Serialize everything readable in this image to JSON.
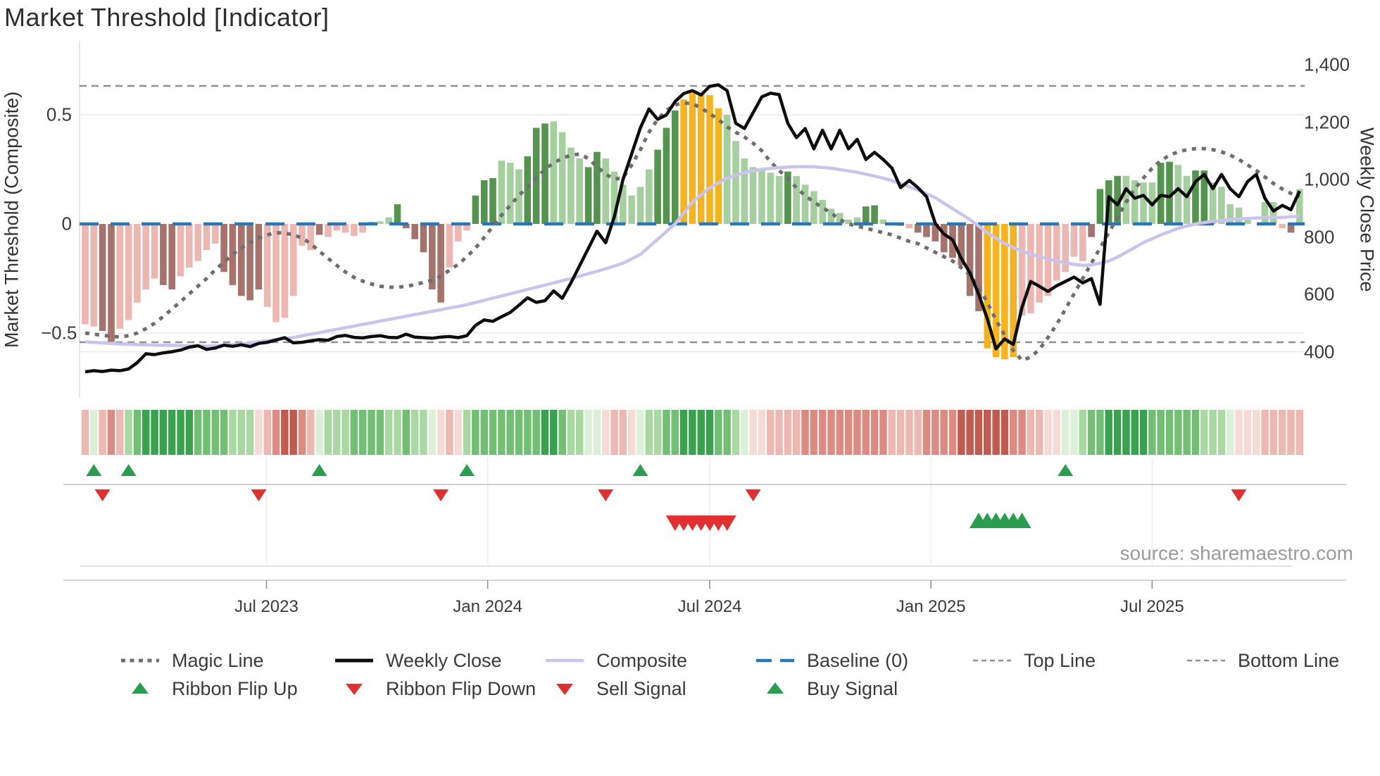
{
  "title": "Market Threshold [Indicator]",
  "source": "source: sharemaestro.com",
  "axes": {
    "left_label": "Market Threshold (Composite)",
    "right_label": "Weekly Close Price",
    "left_ticks": [
      {
        "value": 0.5,
        "label": "0.5"
      },
      {
        "value": 0,
        "label": "0"
      },
      {
        "value": -0.5,
        "label": "−0.5"
      }
    ],
    "right_ticks": [
      {
        "value": 1400,
        "label": "1,400"
      },
      {
        "value": 1200,
        "label": "1,200"
      },
      {
        "value": 1000,
        "label": "1,000"
      },
      {
        "value": 800,
        "label": "800"
      },
      {
        "value": 600,
        "label": "600"
      },
      {
        "value": 400,
        "label": "400"
      }
    ],
    "x_ticks": [
      {
        "label": "Jul 2023",
        "week": 20.9
      },
      {
        "label": "Jan 2024",
        "week": 46.4
      },
      {
        "label": "Jul 2024",
        "week": 72.0
      },
      {
        "label": "Jan 2025",
        "week": 97.5
      },
      {
        "label": "Jul 2025",
        "week": 123.0
      }
    ]
  },
  "legend": {
    "row1": [
      {
        "label": "Magic Line",
        "marker": "dotted-gray"
      },
      {
        "label": "Weekly Close",
        "marker": "solid-black"
      },
      {
        "label": "Composite",
        "marker": "solid-lavender"
      },
      {
        "label": "Baseline (0)",
        "marker": "dashed-blue"
      },
      {
        "label": "Top Line",
        "marker": "dashed-gray"
      },
      {
        "label": "Bottom Line",
        "marker": "dashed-gray"
      }
    ],
    "row2": [
      {
        "label": "Ribbon Flip Up",
        "marker": "triangle-up"
      },
      {
        "label": "Ribbon Flip Down",
        "marker": "triangle-down"
      },
      {
        "label": "Sell Signal",
        "marker": "triangle-down"
      },
      {
        "label": "Buy Signal",
        "marker": "triangle-up"
      }
    ]
  },
  "colors": {
    "bar_pink_light": "#ECB6B1",
    "bar_red_dark": "#A5726C",
    "bar_green_light": "#A6CFA0",
    "bar_green_dark": "#55944F",
    "bar_yellow": "#F5B41F",
    "weekly_close_line": "#0d0d0d",
    "composite_line": "#C9C3EE",
    "magic_line": "#6E6E6E",
    "baseline_blue": "#2878B8",
    "top_bottom_line_gray": "#8F8F8F",
    "signal_green": "#2A9D4E",
    "signal_red": "#E03030",
    "ribbon_greens": [
      "#DCEFD8",
      "#A9D8A3",
      "#72BE73",
      "#3AA14F"
    ],
    "ribbon_reds": [
      "#F6DAD6",
      "#EEB8B2",
      "#DB8B81",
      "#C05B50"
    ],
    "gridline": "#E9E9F0",
    "axis_line": "#CFCFCF"
  },
  "chart_data": {
    "type": "combo bar+line weekly indicator chart",
    "weeks": 141,
    "baseline": 0,
    "top_line_value": 0.63,
    "bottom_line_value": -0.54,
    "left_axis_ticks": [
      0.5,
      0,
      -0.5
    ],
    "right_axis_range": [
      400,
      1400
    ],
    "threshold_bars": [
      -0.46,
      -0.47,
      -0.49,
      -0.54,
      -0.48,
      -0.44,
      -0.36,
      -0.3,
      -0.25,
      -0.28,
      -0.3,
      -0.24,
      -0.2,
      -0.17,
      -0.12,
      -0.09,
      -0.22,
      -0.28,
      -0.33,
      -0.35,
      -0.3,
      -0.38,
      -0.45,
      -0.43,
      -0.33,
      -0.1,
      -0.12,
      -0.05,
      -0.06,
      -0.03,
      -0.04,
      -0.055,
      -0.04,
      0.01,
      0.012,
      0.03,
      0.09,
      -0.02,
      -0.07,
      -0.13,
      -0.3,
      -0.36,
      -0.2,
      -0.08,
      -0.03,
      0.13,
      0.2,
      0.21,
      0.29,
      0.28,
      0.25,
      0.31,
      0.44,
      0.46,
      0.47,
      0.42,
      0.35,
      0.3,
      0.26,
      0.33,
      0.3,
      0.24,
      0.18,
      0.13,
      0.17,
      0.25,
      0.34,
      0.44,
      0.52,
      0.57,
      0.6,
      0.6,
      0.59,
      0.53,
      0.5,
      0.38,
      0.3,
      0.26,
      0.25,
      0.235,
      0.22,
      0.24,
      0.22,
      0.18,
      0.15,
      0.11,
      0.07,
      0.05,
      0.02,
      0.03,
      0.08,
      0.085,
      0.02,
      0,
      -0.01,
      -0.02,
      -0.04,
      -0.06,
      -0.08,
      -0.13,
      -0.155,
      -0.19,
      -0.33,
      -0.4,
      -0.57,
      -0.61,
      -0.62,
      -0.61,
      -0.42,
      -0.41,
      -0.36,
      -0.33,
      -0.26,
      -0.22,
      -0.15,
      -0.17,
      -0.06,
      0.16,
      0.2,
      0.22,
      0.22,
      0.2,
      0.19,
      0.19,
      0.28,
      0.285,
      0.27,
      0.22,
      0.245,
      0.245,
      0.19,
      0.17,
      0.09,
      0.075,
      0.02,
      0,
      0.1,
      0.1,
      -0.02,
      -0.04,
      0.16
    ],
    "bar_colors": [
      "p",
      "p",
      "m",
      "m",
      "p",
      "p",
      "p",
      "p",
      "p",
      "m",
      "m",
      "p",
      "p",
      "p",
      "p",
      "p",
      "m",
      "m",
      "m",
      "m",
      "m",
      "p",
      "p",
      "p",
      "p",
      "p",
      "p",
      "m",
      "p",
      "p",
      "p",
      "p",
      "p",
      "g",
      "g",
      "g",
      "G",
      "m",
      "m",
      "m",
      "m",
      "m",
      "p",
      "p",
      "p",
      "G",
      "G",
      "G",
      "g",
      "g",
      "g",
      "G",
      "G",
      "G",
      "g",
      "g",
      "g",
      "g",
      "G",
      "G",
      "g",
      "g",
      "g",
      "g",
      "g",
      "g",
      "G",
      "G",
      "G",
      "y",
      "y",
      "y",
      "y",
      "y",
      "g",
      "g",
      "g",
      "g",
      "g",
      "g",
      "g",
      "G",
      "g",
      "g",
      "g",
      "g",
      "g",
      "g",
      "g",
      "g",
      "G",
      "G",
      "g",
      "",
      "p",
      "p",
      "m",
      "m",
      "m",
      "m",
      "m",
      "m",
      "m",
      "m",
      "y",
      "y",
      "y",
      "y",
      "p",
      "p",
      "p",
      "p",
      "p",
      "p",
      "p",
      "p",
      "m",
      "G",
      "G",
      "G",
      "g",
      "g",
      "g",
      "g",
      "G",
      "G",
      "g",
      "g",
      "G",
      "G",
      "g",
      "g",
      "g",
      "g",
      "g",
      "",
      "g",
      "g",
      "p",
      "m",
      "g"
    ],
    "weekly_close": [
      330,
      334,
      331,
      336,
      334,
      340,
      362,
      393,
      390,
      396,
      400,
      406,
      416,
      421,
      408,
      413,
      423,
      419,
      424,
      418,
      429,
      433,
      441,
      449,
      431,
      433,
      438,
      442,
      440,
      453,
      457,
      450,
      448,
      453,
      456,
      450,
      449,
      461,
      451,
      449,
      447,
      451,
      453,
      449,
      456,
      492,
      511,
      506,
      522,
      537,
      562,
      588,
      572,
      578,
      612,
      586,
      640,
      700,
      760,
      820,
      780,
      870,
      1000,
      1090,
      1180,
      1246,
      1210,
      1225,
      1272,
      1300,
      1310,
      1295,
      1325,
      1330,
      1310,
      1196,
      1178,
      1233,
      1288,
      1301,
      1296,
      1196,
      1146,
      1178,
      1107,
      1172,
      1107,
      1172,
      1107,
      1140,
      1070,
      1095,
      1070,
      1040,
      972,
      997,
      972,
      940,
      847,
      810,
      790,
      725,
      675,
      600,
      515,
      410,
      445,
      425,
      555,
      645,
      628,
      610,
      630,
      645,
      660,
      640,
      655,
      565,
      940,
      912,
      968,
      935,
      945,
      912,
      945,
      940,
      968,
      940,
      993,
      1018,
      968,
      1018,
      968,
      940,
      993,
      1018,
      935,
      890,
      910,
      895,
      960
    ],
    "composite": [
      -0.54,
      -0.543,
      -0.545,
      -0.548,
      -0.55,
      -0.551,
      -0.553,
      -0.554,
      -0.555,
      -0.556,
      -0.556,
      -0.557,
      -0.558,
      -0.559,
      -0.56,
      -0.558,
      -0.556,
      -0.553,
      -0.55,
      -0.545,
      -0.54,
      -0.535,
      -0.53,
      -0.525,
      -0.52,
      -0.513,
      -0.505,
      -0.498,
      -0.49,
      -0.483,
      -0.475,
      -0.468,
      -0.46,
      -0.453,
      -0.445,
      -0.438,
      -0.43,
      -0.423,
      -0.415,
      -0.408,
      -0.4,
      -0.393,
      -0.385,
      -0.378,
      -0.37,
      -0.36,
      -0.35,
      -0.34,
      -0.33,
      -0.32,
      -0.31,
      -0.3,
      -0.29,
      -0.28,
      -0.27,
      -0.26,
      -0.25,
      -0.239,
      -0.228,
      -0.217,
      -0.205,
      -0.193,
      -0.18,
      -0.16,
      -0.14,
      -0.105,
      -0.07,
      -0.035,
      0.0,
      0.05,
      0.1,
      0.133,
      0.165,
      0.188,
      0.21,
      0.223,
      0.235,
      0.243,
      0.25,
      0.254,
      0.258,
      0.26,
      0.262,
      0.262,
      0.262,
      0.259,
      0.255,
      0.249,
      0.243,
      0.236,
      0.228,
      0.219,
      0.21,
      0.198,
      0.185,
      0.17,
      0.155,
      0.138,
      0.12,
      0.095,
      0.07,
      0.045,
      0.02,
      -0.01,
      -0.04,
      -0.065,
      -0.09,
      -0.108,
      -0.125,
      -0.138,
      -0.15,
      -0.16,
      -0.17,
      -0.178,
      -0.185,
      -0.19,
      -0.188,
      -0.18,
      -0.17,
      -0.152,
      -0.13,
      -0.108,
      -0.085,
      -0.068,
      -0.05,
      -0.035,
      -0.02,
      -0.01,
      0.0,
      0.006,
      0.012,
      0.016,
      0.02,
      0.023,
      0.025,
      0.027,
      0.028,
      0.029,
      0.03,
      0.033,
      0.035
    ],
    "magic_line": [
      -0.5,
      -0.505,
      -0.51,
      -0.515,
      -0.518,
      -0.512,
      -0.5,
      -0.48,
      -0.455,
      -0.424,
      -0.39,
      -0.356,
      -0.32,
      -0.285,
      -0.25,
      -0.21,
      -0.175,
      -0.14,
      -0.11,
      -0.085,
      -0.065,
      -0.05,
      -0.04,
      -0.042,
      -0.05,
      -0.065,
      -0.09,
      -0.125,
      -0.158,
      -0.19,
      -0.22,
      -0.245,
      -0.262,
      -0.275,
      -0.285,
      -0.29,
      -0.29,
      -0.286,
      -0.278,
      -0.268,
      -0.258,
      -0.24,
      -0.212,
      -0.185,
      -0.15,
      -0.11,
      -0.062,
      -0.012,
      0.04,
      0.085,
      0.13,
      0.17,
      0.21,
      0.25,
      0.28,
      0.3,
      0.315,
      0.32,
      0.3,
      0.262,
      0.228,
      0.205,
      0.212,
      0.27,
      0.34,
      0.42,
      0.48,
      0.52,
      0.545,
      0.555,
      0.55,
      0.532,
      0.505,
      0.478,
      0.445,
      0.42,
      0.398,
      0.37,
      0.335,
      0.285,
      0.245,
      0.21,
      0.165,
      0.13,
      0.1,
      0.075,
      0.05,
      0.02,
      0.0,
      -0.01,
      -0.02,
      -0.03,
      -0.04,
      -0.05,
      -0.065,
      -0.08,
      -0.09,
      -0.11,
      -0.13,
      -0.15,
      -0.17,
      -0.2,
      -0.235,
      -0.29,
      -0.36,
      -0.44,
      -0.51,
      -0.58,
      -0.625,
      -0.61,
      -0.575,
      -0.52,
      -0.46,
      -0.39,
      -0.32,
      -0.25,
      -0.18,
      -0.11,
      -0.04,
      0.03,
      0.1,
      0.16,
      0.21,
      0.255,
      0.29,
      0.315,
      0.33,
      0.34,
      0.345,
      0.345,
      0.34,
      0.33,
      0.315,
      0.295,
      0.27,
      0.245,
      0.215,
      0.185,
      0.16,
      0.14,
      0.125
    ],
    "ribbon": [
      -2,
      1,
      -2,
      -3,
      -2,
      2,
      3,
      4,
      4,
      4,
      4,
      4,
      4,
      3,
      3,
      3,
      3,
      2,
      2,
      2,
      -1,
      -2,
      -3,
      -4,
      -4,
      -3,
      -2,
      1,
      2,
      2,
      2,
      3,
      3,
      3,
      3,
      2,
      2,
      3,
      2,
      2,
      1,
      -1,
      -2,
      -1,
      2,
      3,
      3,
      3,
      3,
      3,
      3,
      3,
      3,
      4,
      4,
      3,
      2,
      2,
      1,
      1,
      -1,
      -2,
      -2,
      -1,
      1,
      2,
      2,
      3,
      3,
      4,
      4,
      4,
      4,
      3,
      3,
      2,
      1,
      -1,
      -1,
      -2,
      -2,
      -2,
      -2,
      -3,
      -3,
      -3,
      -3,
      -3,
      -3,
      -3,
      -3,
      -3,
      -3,
      -2,
      -2,
      -2,
      -2,
      -3,
      -3,
      -3,
      -3,
      -4,
      -4,
      -4,
      -4,
      -4,
      -4,
      -3,
      -3,
      -2,
      -2,
      -1,
      -1,
      1,
      1,
      2,
      3,
      3,
      4,
      4,
      4,
      4,
      4,
      3,
      3,
      3,
      3,
      3,
      3,
      2,
      2,
      2,
      1,
      -1,
      -1,
      -1,
      -2,
      -2,
      -2,
      -2,
      -2
    ],
    "signals": {
      "ribbon_flip_up_weeks": [
        1,
        5,
        27,
        44,
        64,
        113
      ],
      "ribbon_flip_down_weeks": [
        2,
        20,
        41,
        60,
        77,
        133
      ],
      "sell_signal_weeks": [
        68,
        69,
        70,
        71,
        72,
        73,
        74
      ],
      "buy_signal_weeks": [
        103,
        104,
        105,
        106,
        107,
        108
      ]
    }
  }
}
